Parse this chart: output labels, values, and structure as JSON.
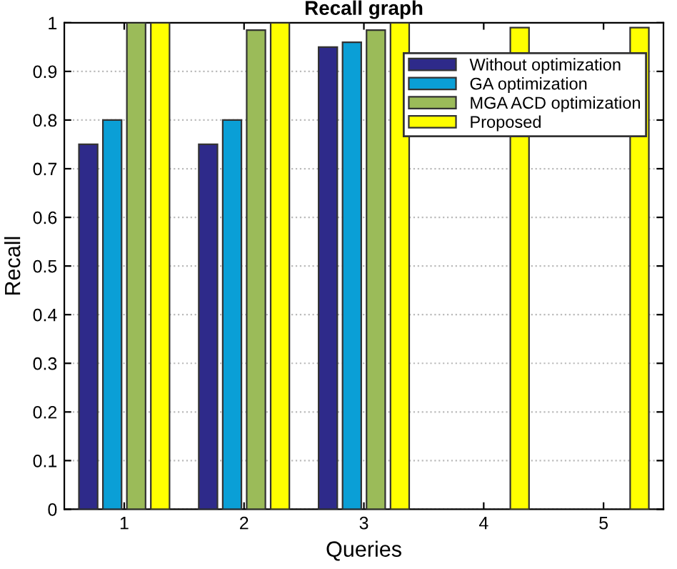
{
  "chart_data": {
    "type": "bar",
    "title": "Recall graph",
    "xlabel": "Queries",
    "ylabel": "Recall",
    "categories": [
      "1",
      "2",
      "3",
      "4",
      "5"
    ],
    "series": [
      {
        "name": "Without optimization",
        "color": "#2e2a8a",
        "values": [
          0.75,
          0.75,
          0.95,
          null,
          null
        ]
      },
      {
        "name": "GA optimization",
        "color": "#0a9fd6",
        "values": [
          0.8,
          0.8,
          0.96,
          null,
          null
        ]
      },
      {
        "name": "MGA ACD optimization",
        "color": "#9bbb59",
        "values": [
          1.0,
          0.985,
          0.985,
          null,
          null
        ]
      },
      {
        "name": "Proposed",
        "color": "#ffff00",
        "values": [
          1.0,
          1.0,
          1.0,
          0.99,
          0.99
        ]
      }
    ],
    "ylim": [
      0,
      1
    ],
    "yticks": [
      0,
      0.1,
      0.2,
      0.3,
      0.4,
      0.5,
      0.6,
      0.7,
      0.8,
      0.9,
      1
    ],
    "grid": "y",
    "legend": "top right"
  }
}
